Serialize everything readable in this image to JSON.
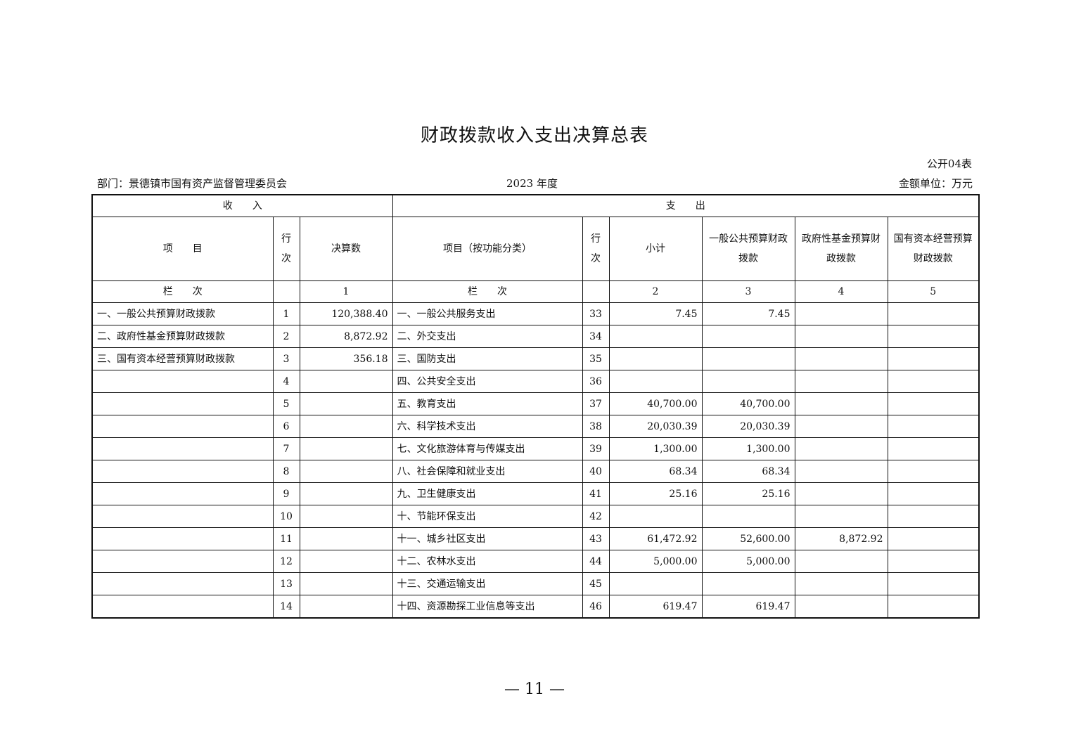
{
  "title": "财政拨款收入支出决算总表",
  "table_no": "公开04表",
  "department": "部门：景德镇市国有资产监督管理委员会",
  "year": "2023 年度",
  "unit": "金额单位：万元",
  "headers": {
    "income": "收　　入",
    "expense": "支　　出",
    "item": "项　　目",
    "row_no": "行次",
    "final_amount": "决算数",
    "item_func": "项目（按功能分类）",
    "subtotal": "小计",
    "general_budget": "一般公共预算财政拨款",
    "gov_fund": "政府性基金预算财政拨款",
    "state_capital": "国有资本经营预算财政拨款",
    "column_label": "栏　　次",
    "col1": "1",
    "col2": "2",
    "col3": "3",
    "col4": "4",
    "col5": "5"
  },
  "rows": [
    {
      "income_item": "一、一般公共预算财政拨款",
      "income_no": "1",
      "income_amount": "120,388.40",
      "exp_item": "一、一般公共服务支出",
      "exp_no": "33",
      "subtotal": "7.45",
      "general": "7.45",
      "fund": "",
      "capital": ""
    },
    {
      "income_item": "二、政府性基金预算财政拨款",
      "income_no": "2",
      "income_amount": "8,872.92",
      "exp_item": "二、外交支出",
      "exp_no": "34",
      "subtotal": "",
      "general": "",
      "fund": "",
      "capital": ""
    },
    {
      "income_item": "三、国有资本经营预算财政拨款",
      "income_no": "3",
      "income_amount": "356.18",
      "exp_item": "三、国防支出",
      "exp_no": "35",
      "subtotal": "",
      "general": "",
      "fund": "",
      "capital": ""
    },
    {
      "income_item": "",
      "income_no": "4",
      "income_amount": "",
      "exp_item": "四、公共安全支出",
      "exp_no": "36",
      "subtotal": "",
      "general": "",
      "fund": "",
      "capital": ""
    },
    {
      "income_item": "",
      "income_no": "5",
      "income_amount": "",
      "exp_item": "五、教育支出",
      "exp_no": "37",
      "subtotal": "40,700.00",
      "general": "40,700.00",
      "fund": "",
      "capital": ""
    },
    {
      "income_item": "",
      "income_no": "6",
      "income_amount": "",
      "exp_item": "六、科学技术支出",
      "exp_no": "38",
      "subtotal": "20,030.39",
      "general": "20,030.39",
      "fund": "",
      "capital": ""
    },
    {
      "income_item": "",
      "income_no": "7",
      "income_amount": "",
      "exp_item": "七、文化旅游体育与传媒支出",
      "exp_no": "39",
      "subtotal": "1,300.00",
      "general": "1,300.00",
      "fund": "",
      "capital": ""
    },
    {
      "income_item": "",
      "income_no": "8",
      "income_amount": "",
      "exp_item": "八、社会保障和就业支出",
      "exp_no": "40",
      "subtotal": "68.34",
      "general": "68.34",
      "fund": "",
      "capital": ""
    },
    {
      "income_item": "",
      "income_no": "9",
      "income_amount": "",
      "exp_item": "九、卫生健康支出",
      "exp_no": "41",
      "subtotal": "25.16",
      "general": "25.16",
      "fund": "",
      "capital": ""
    },
    {
      "income_item": "",
      "income_no": "10",
      "income_amount": "",
      "exp_item": "十、节能环保支出",
      "exp_no": "42",
      "subtotal": "",
      "general": "",
      "fund": "",
      "capital": ""
    },
    {
      "income_item": "",
      "income_no": "11",
      "income_amount": "",
      "exp_item": "十一、城乡社区支出",
      "exp_no": "43",
      "subtotal": "61,472.92",
      "general": "52,600.00",
      "fund": "8,872.92",
      "capital": ""
    },
    {
      "income_item": "",
      "income_no": "12",
      "income_amount": "",
      "exp_item": "十二、农林水支出",
      "exp_no": "44",
      "subtotal": "5,000.00",
      "general": "5,000.00",
      "fund": "",
      "capital": ""
    },
    {
      "income_item": "",
      "income_no": "13",
      "income_amount": "",
      "exp_item": "十三、交通运输支出",
      "exp_no": "45",
      "subtotal": "",
      "general": "",
      "fund": "",
      "capital": ""
    },
    {
      "income_item": "",
      "income_no": "14",
      "income_amount": "",
      "exp_item": "十四、资源勘探工业信息等支出",
      "exp_no": "46",
      "subtotal": "619.47",
      "general": "619.47",
      "fund": "",
      "capital": ""
    }
  ],
  "page_number": "— 11 —"
}
